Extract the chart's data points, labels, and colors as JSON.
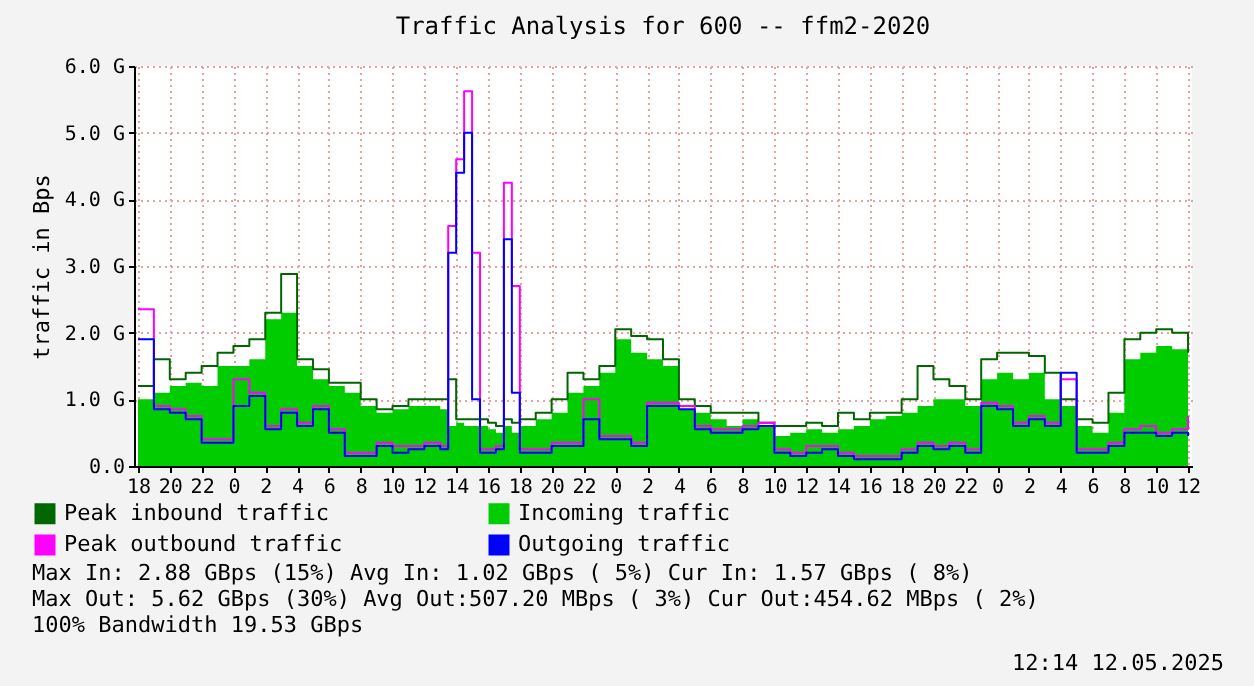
{
  "chart_data": {
    "type": "step",
    "title": "Traffic Analysis for 600 -- ffm2-2020",
    "ylabel": "traffic in Bps",
    "x": [
      "2025-05-09T18:00",
      "2025-05-09T19:00",
      "2025-05-09T20:00",
      "2025-05-09T21:00",
      "2025-05-09T22:00",
      "2025-05-09T23:00",
      "2025-05-10T00:00",
      "2025-05-10T01:00",
      "2025-05-10T02:00",
      "2025-05-10T03:00",
      "2025-05-10T04:00",
      "2025-05-10T05:00",
      "2025-05-10T06:00",
      "2025-05-10T07:00",
      "2025-05-10T08:00",
      "2025-05-10T09:00",
      "2025-05-10T10:00",
      "2025-05-10T11:00",
      "2025-05-10T12:00",
      "2025-05-10T13:00",
      "2025-05-10T13:30",
      "2025-05-10T14:00",
      "2025-05-10T14:30",
      "2025-05-10T15:00",
      "2025-05-10T15:30",
      "2025-05-10T16:00",
      "2025-05-10T16:30",
      "2025-05-10T17:00",
      "2025-05-10T17:30",
      "2025-05-10T18:00",
      "2025-05-10T19:00",
      "2025-05-10T20:00",
      "2025-05-10T21:00",
      "2025-05-10T22:00",
      "2025-05-10T23:00",
      "2025-05-11T00:00",
      "2025-05-11T01:00",
      "2025-05-11T02:00",
      "2025-05-11T03:00",
      "2025-05-11T04:00",
      "2025-05-11T05:00",
      "2025-05-11T06:00",
      "2025-05-11T07:00",
      "2025-05-11T08:00",
      "2025-05-11T09:00",
      "2025-05-11T10:00",
      "2025-05-11T11:00",
      "2025-05-11T12:00",
      "2025-05-11T13:00",
      "2025-05-11T14:00",
      "2025-05-11T15:00",
      "2025-05-11T16:00",
      "2025-05-11T17:00",
      "2025-05-11T18:00",
      "2025-05-11T19:00",
      "2025-05-11T20:00",
      "2025-05-11T21:00",
      "2025-05-11T22:00",
      "2025-05-11T23:00",
      "2025-05-12T00:00",
      "2025-05-12T01:00",
      "2025-05-12T02:00",
      "2025-05-12T03:00",
      "2025-05-12T04:00",
      "2025-05-12T05:00",
      "2025-05-12T06:00",
      "2025-05-12T07:00",
      "2025-05-12T08:00",
      "2025-05-12T09:00",
      "2025-05-12T10:00",
      "2025-05-12T11:00",
      "2025-05-12T12:00"
    ],
    "series": [
      {
        "name": "Peak inbound traffic",
        "color": "#006600",
        "values": [
          1.2,
          1.6,
          1.3,
          1.4,
          1.5,
          1.7,
          1.8,
          1.9,
          2.3,
          2.88,
          1.6,
          1.45,
          1.25,
          1.25,
          1.0,
          0.85,
          0.9,
          1.0,
          1.0,
          1.0,
          1.3,
          0.7,
          0.7,
          0.7,
          0.7,
          0.65,
          0.6,
          0.7,
          0.65,
          0.7,
          0.8,
          1.0,
          1.4,
          1.3,
          1.5,
          2.05,
          1.95,
          1.9,
          1.6,
          1.0,
          0.9,
          0.8,
          0.8,
          0.8,
          0.65,
          0.6,
          0.6,
          0.65,
          0.6,
          0.8,
          0.7,
          0.8,
          0.8,
          1.0,
          1.5,
          1.3,
          1.2,
          1.0,
          1.6,
          1.7,
          1.7,
          1.65,
          1.4,
          1.0,
          0.7,
          0.65,
          1.1,
          1.9,
          2.0,
          2.05,
          2.0,
          1.7
        ]
      },
      {
        "name": "Incoming traffic",
        "type": "area",
        "color": "#00cc00",
        "values": [
          1.0,
          1.1,
          1.2,
          1.25,
          1.2,
          1.5,
          1.5,
          1.6,
          2.2,
          2.3,
          1.5,
          1.3,
          1.2,
          1.1,
          0.9,
          0.8,
          0.85,
          0.9,
          0.9,
          0.85,
          0.6,
          0.65,
          0.6,
          0.6,
          0.6,
          0.55,
          0.5,
          0.6,
          0.5,
          0.6,
          0.7,
          0.8,
          1.1,
          1.2,
          1.4,
          1.9,
          1.7,
          1.6,
          1.5,
          0.85,
          0.8,
          0.7,
          0.6,
          0.7,
          0.6,
          0.45,
          0.5,
          0.55,
          0.5,
          0.55,
          0.6,
          0.7,
          0.75,
          0.8,
          0.9,
          1.0,
          1.0,
          0.9,
          1.3,
          1.4,
          1.3,
          1.4,
          1.0,
          0.9,
          0.6,
          0.5,
          0.8,
          1.6,
          1.7,
          1.8,
          1.75,
          1.5
        ]
      },
      {
        "name": "Peak outbound traffic",
        "color": "#ff00ff",
        "values": [
          2.35,
          0.9,
          0.85,
          0.75,
          0.4,
          0.4,
          1.3,
          1.1,
          0.6,
          0.85,
          0.65,
          0.9,
          0.55,
          0.2,
          0.2,
          0.35,
          0.3,
          0.3,
          0.35,
          0.3,
          3.6,
          4.6,
          5.62,
          3.2,
          0.25,
          0.25,
          0.3,
          4.25,
          2.7,
          0.25,
          0.25,
          0.35,
          0.35,
          1.0,
          0.45,
          0.45,
          0.35,
          0.95,
          0.95,
          0.9,
          0.6,
          0.55,
          0.55,
          0.6,
          0.65,
          0.25,
          0.2,
          0.3,
          0.3,
          0.2,
          0.15,
          0.15,
          0.15,
          0.25,
          0.35,
          0.3,
          0.35,
          0.25,
          0.95,
          0.9,
          0.65,
          0.75,
          0.65,
          1.3,
          0.25,
          0.25,
          0.35,
          0.55,
          0.6,
          0.5,
          0.55,
          0.75
        ]
      },
      {
        "name": "Outgoing traffic",
        "color": "#0000ff",
        "values": [
          1.9,
          0.85,
          0.8,
          0.7,
          0.35,
          0.35,
          0.9,
          1.05,
          0.55,
          0.8,
          0.6,
          0.85,
          0.5,
          0.15,
          0.15,
          0.3,
          0.2,
          0.25,
          0.3,
          0.25,
          3.2,
          4.4,
          5.0,
          1.0,
          0.2,
          0.2,
          0.25,
          3.4,
          1.1,
          0.2,
          0.2,
          0.3,
          0.3,
          0.7,
          0.4,
          0.4,
          0.3,
          0.9,
          0.9,
          0.85,
          0.55,
          0.5,
          0.5,
          0.55,
          0.6,
          0.2,
          0.15,
          0.2,
          0.25,
          0.15,
          0.1,
          0.1,
          0.1,
          0.2,
          0.3,
          0.25,
          0.3,
          0.2,
          0.9,
          0.85,
          0.6,
          0.7,
          0.6,
          1.4,
          0.2,
          0.2,
          0.3,
          0.5,
          0.5,
          0.45,
          0.5,
          0.45
        ]
      }
    ],
    "xlim": [
      "2025-05-09T17:45",
      "2025-05-12T12:15"
    ],
    "xticks": [
      {
        "value": "2025-05-09T18:00",
        "label": "18"
      },
      {
        "value": "2025-05-09T20:00",
        "label": "20"
      },
      {
        "value": "2025-05-09T22:00",
        "label": "22"
      },
      {
        "value": "2025-05-10T00:00",
        "label": "0"
      },
      {
        "value": "2025-05-10T02:00",
        "label": "2"
      },
      {
        "value": "2025-05-10T04:00",
        "label": "4"
      },
      {
        "value": "2025-05-10T06:00",
        "label": "6"
      },
      {
        "value": "2025-05-10T08:00",
        "label": "8"
      },
      {
        "value": "2025-05-10T10:00",
        "label": "10"
      },
      {
        "value": "2025-05-10T12:00",
        "label": "12"
      },
      {
        "value": "2025-05-10T14:00",
        "label": "14"
      },
      {
        "value": "2025-05-10T16:00",
        "label": "16"
      },
      {
        "value": "2025-05-10T18:00",
        "label": "18"
      },
      {
        "value": "2025-05-10T20:00",
        "label": "20"
      },
      {
        "value": "2025-05-10T22:00",
        "label": "22"
      },
      {
        "value": "2025-05-11T00:00",
        "label": "0"
      },
      {
        "value": "2025-05-11T02:00",
        "label": "2"
      },
      {
        "value": "2025-05-11T04:00",
        "label": "4"
      },
      {
        "value": "2025-05-11T06:00",
        "label": "6"
      },
      {
        "value": "2025-05-11T08:00",
        "label": "8"
      },
      {
        "value": "2025-05-11T10:00",
        "label": "10"
      },
      {
        "value": "2025-05-11T12:00",
        "label": "12"
      },
      {
        "value": "2025-05-11T14:00",
        "label": "14"
      },
      {
        "value": "2025-05-11T16:00",
        "label": "16"
      },
      {
        "value": "2025-05-11T18:00",
        "label": "18"
      },
      {
        "value": "2025-05-11T20:00",
        "label": "20"
      },
      {
        "value": "2025-05-11T22:00",
        "label": "22"
      },
      {
        "value": "2025-05-12T00:00",
        "label": "0"
      },
      {
        "value": "2025-05-12T02:00",
        "label": "2"
      },
      {
        "value": "2025-05-12T04:00",
        "label": "4"
      },
      {
        "value": "2025-05-12T06:00",
        "label": "6"
      },
      {
        "value": "2025-05-12T08:00",
        "label": "8"
      },
      {
        "value": "2025-05-12T10:00",
        "label": "10"
      },
      {
        "value": "2025-05-12T12:00",
        "label": "12"
      }
    ],
    "ylim": [
      0,
      6
    ],
    "yticks": [
      {
        "value": 0,
        "label": "0.0"
      },
      {
        "value": 1,
        "label": "1.0 G"
      },
      {
        "value": 2,
        "label": "2.0 G"
      },
      {
        "value": 3,
        "label": "3.0 G"
      },
      {
        "value": 4,
        "label": "4.0 G"
      },
      {
        "value": 5,
        "label": "5.0 G"
      },
      {
        "value": 6,
        "label": "6.0 G"
      }
    ],
    "grid": true,
    "legend": "bottom",
    "annotations": [
      "Max In:   2.88 GBps (15%)  Avg In:   1.02 GBps ( 5%)  Cur In:   1.57 GBps ( 8%)",
      "Max Out:  5.62 GBps (30%)  Avg Out:507.20 MBps ( 3%)  Cur Out:454.62 MBps ( 2%)",
      "100% Bandwidth 19.53 GBps",
      "12:14 12.05.2025"
    ]
  }
}
